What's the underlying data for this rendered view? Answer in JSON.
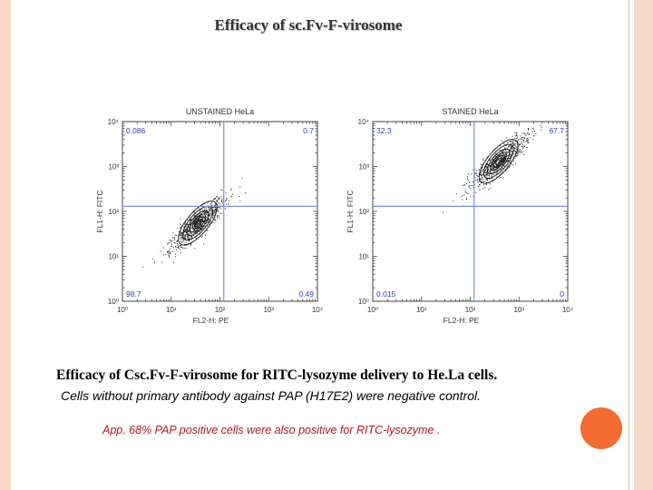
{
  "slide": {
    "title": "Efficacy of sc.Fv-F-virosome",
    "caption_main": "Efficacy of Csc.Fv-F-virosome for RITC-lysozyme delivery to He.La cells.",
    "caption_sub": "Cells without primary antibody against PAP (H17E2) were negative control.",
    "note": "App. 68% PAP positive cells were also positive for RITC-lysozyme ."
  },
  "colors": {
    "frame": "#f7d9c9",
    "accent": "#f26b31",
    "gate_line": "#7b8fd6",
    "quadrant_label": "#2f3fa0",
    "note_text": "#b0171f"
  },
  "chart_data": [
    {
      "type": "scatter",
      "subtype": "flow-cytometry-contour",
      "title": "UNSTAINED HeLa",
      "xlabel": "FL2-H: PE",
      "ylabel": "FL1-H: FITC",
      "x_scale": "log",
      "y_scale": "log",
      "xlim": [
        1,
        10000
      ],
      "ylim": [
        1,
        10000
      ],
      "x_ticks": [
        "10⁰",
        "10¹",
        "10²",
        "10³",
        "10⁴"
      ],
      "y_ticks": [
        "10⁰",
        "10¹",
        "10²",
        "10³",
        "10⁴"
      ],
      "quadrant_gate": {
        "x": 120,
        "y": 130
      },
      "quadrants": {
        "upper_left": 0.086,
        "upper_right": 0.7,
        "lower_left": 98.7,
        "lower_right": 0.49
      },
      "quadrant_labels": {
        "upper_left": "0.086",
        "upper_right": "0.7",
        "lower_left": "98.7",
        "lower_right": "0.49"
      },
      "population_center": {
        "x": 35,
        "y": 55
      },
      "grid": false
    },
    {
      "type": "scatter",
      "subtype": "flow-cytometry-contour",
      "title": "STAINED HeLa",
      "xlabel": "FL2-H: PE",
      "ylabel": "FL1-H: FITC",
      "x_scale": "log",
      "y_scale": "log",
      "xlim": [
        1,
        10000
      ],
      "ylim": [
        1,
        10000
      ],
      "x_ticks": [
        "10⁰",
        "10¹",
        "10²",
        "10³",
        "10⁴"
      ],
      "y_ticks": [
        "10⁰",
        "10¹",
        "10²",
        "10³",
        "10⁴"
      ],
      "quadrant_gate": {
        "x": 120,
        "y": 130
      },
      "quadrants": {
        "upper_left": 32.3,
        "upper_right": 67.7,
        "lower_left": 0.015,
        "lower_right": 0
      },
      "quadrant_labels": {
        "upper_left": "32.3",
        "upper_right": "67.7",
        "lower_left": "0.015",
        "lower_right": "0"
      },
      "population_center": {
        "x": 380,
        "y": 1300
      },
      "grid": false
    }
  ]
}
